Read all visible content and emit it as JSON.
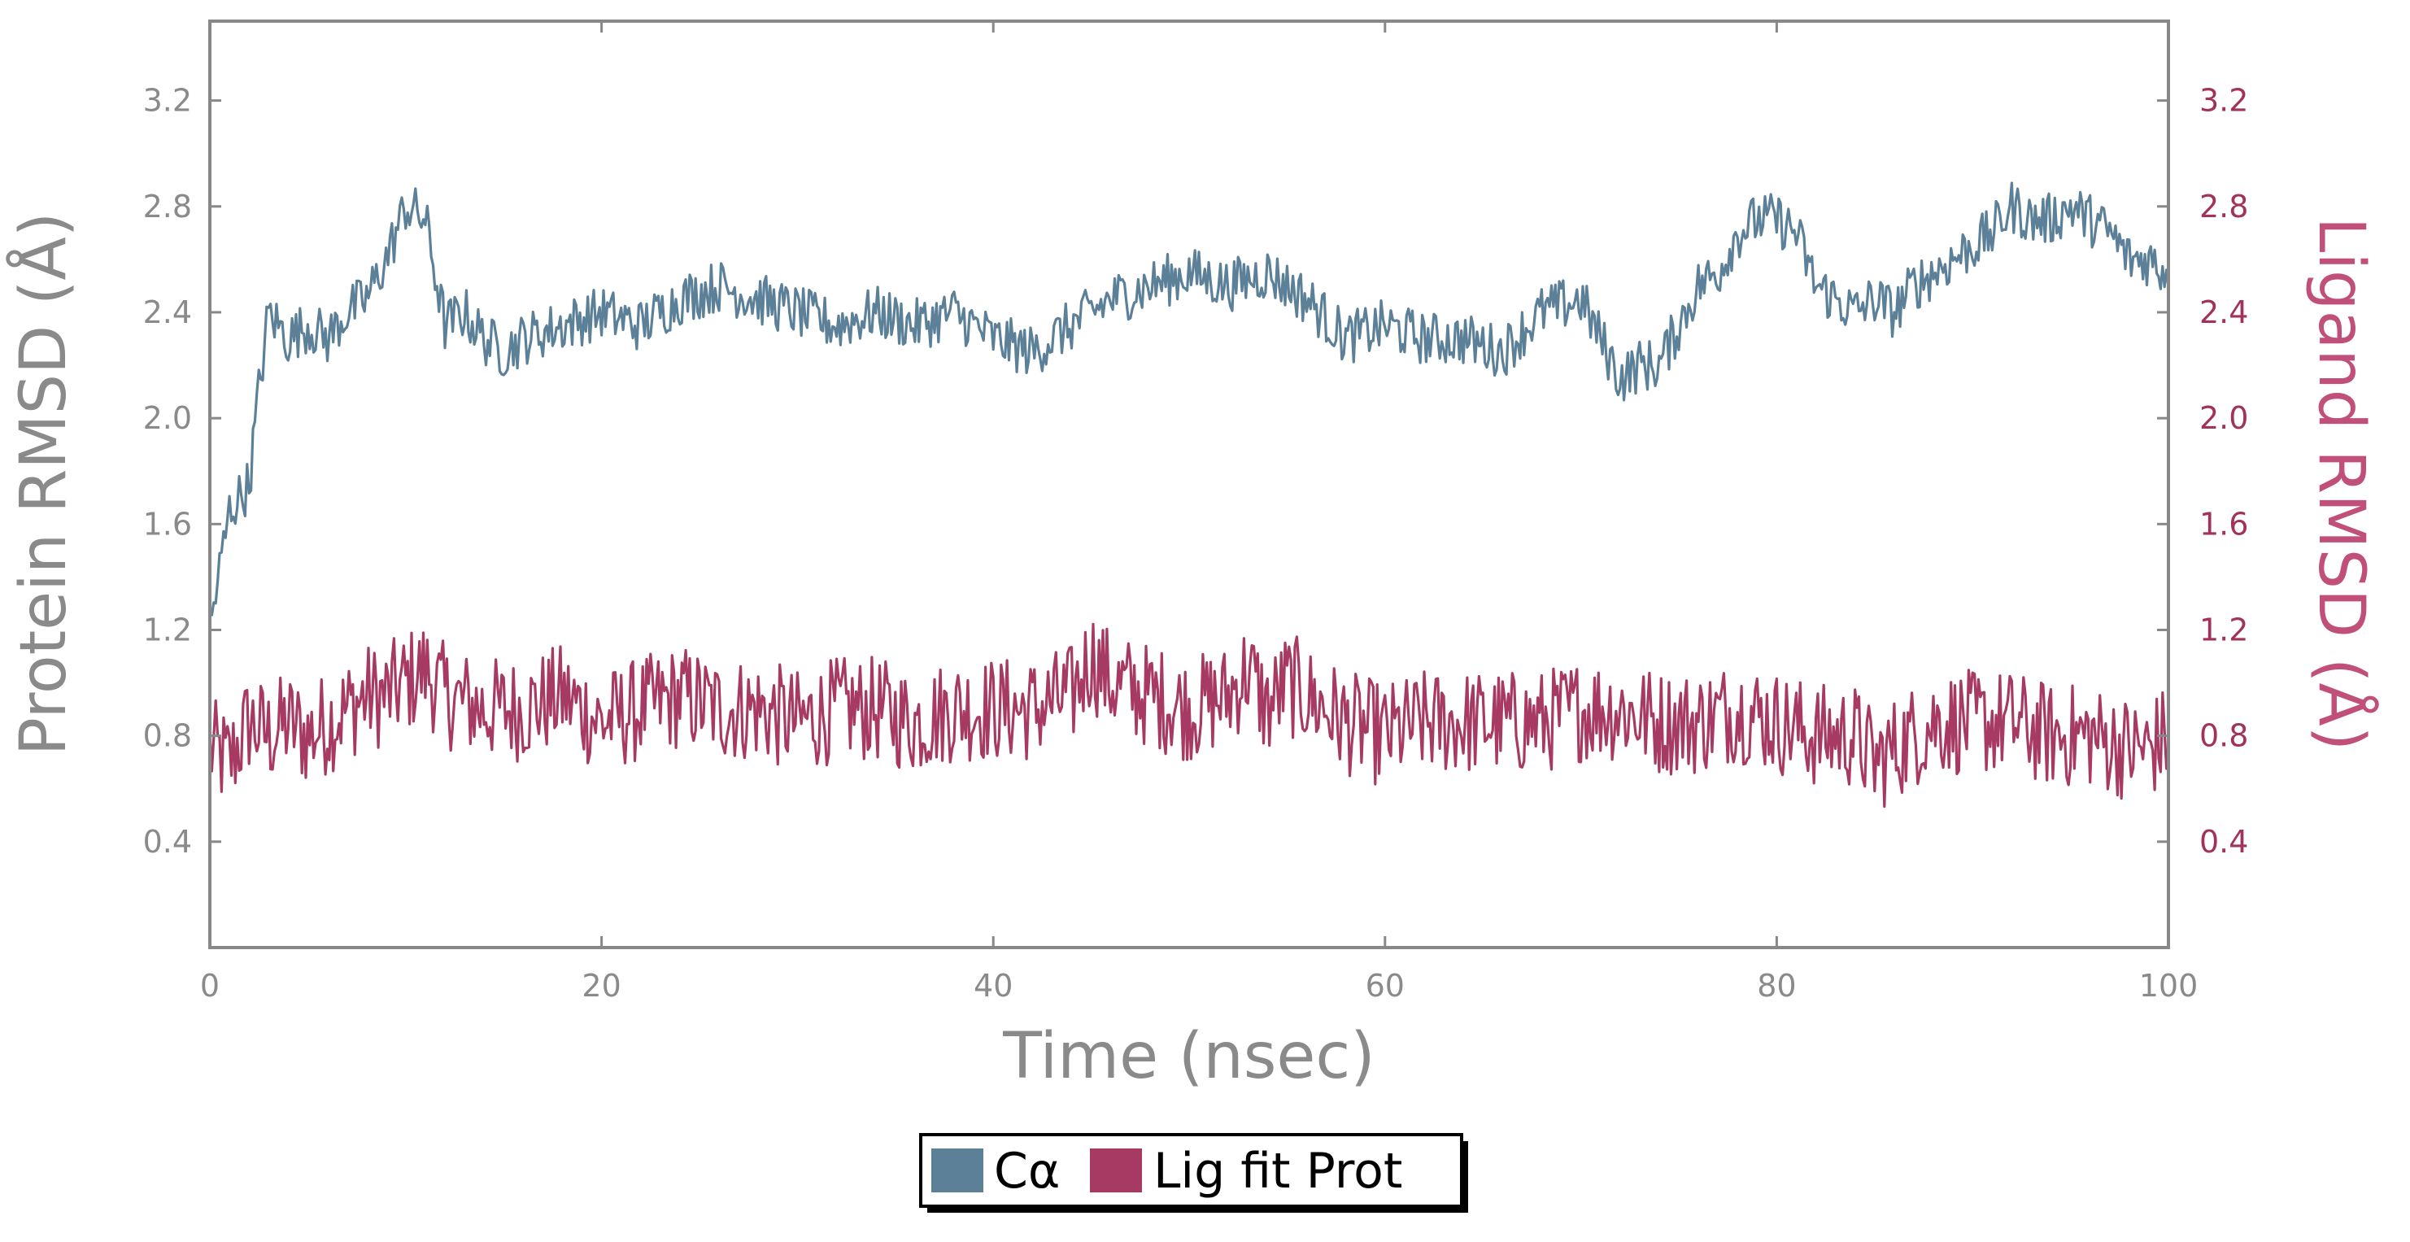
{
  "chart_data": {
    "type": "line",
    "xlabel": "Time (nsec)",
    "ylabel_left": "Protein RMSD (Å)",
    "ylabel_right": "Ligand RMSD (Å)",
    "xlim": [
      0,
      100
    ],
    "ylim_left": [
      0.0,
      3.5
    ],
    "ylim_right": [
      0.0,
      3.5
    ],
    "x_ticks": [
      "0",
      "20",
      "40",
      "60",
      "80",
      "100"
    ],
    "y_ticks_left": [
      "0.4",
      "0.8",
      "1.2",
      "1.6",
      "2.0",
      "2.4",
      "2.8",
      "3.2"
    ],
    "y_ticks_right": [
      "0.4",
      "0.8",
      "1.2",
      "1.6",
      "2.0",
      "2.4",
      "2.8",
      "3.2"
    ],
    "grid": false,
    "legend_position": "bottom-center",
    "colors": {
      "protein": "#5b8098",
      "ligand": "#a73a62",
      "axis_text_left": "#8a8a8a",
      "axis_text_right": "#a0325c",
      "frame": "#888888"
    },
    "series": [
      {
        "name": "Cα",
        "axis": "left",
        "x": [
          0,
          1,
          2,
          2.5,
          3,
          4,
          5,
          6,
          7,
          8,
          9,
          10,
          11,
          12,
          13,
          14,
          15,
          16,
          18,
          20,
          22,
          24,
          26,
          28,
          30,
          32,
          34,
          36,
          38,
          40,
          42,
          44,
          46,
          48,
          50,
          52,
          54,
          56,
          58,
          60,
          62,
          64,
          66,
          68,
          70,
          71,
          72,
          73,
          74,
          75,
          76,
          77,
          78,
          79,
          80,
          81,
          82,
          83,
          84,
          85,
          86,
          87,
          88,
          89,
          90,
          91,
          92,
          93,
          94,
          95,
          96,
          97,
          98,
          99,
          100
        ],
        "y": [
          1.2,
          1.65,
          1.75,
          2.1,
          2.4,
          2.3,
          2.35,
          2.3,
          2.4,
          2.45,
          2.6,
          2.8,
          2.75,
          2.35,
          2.4,
          2.3,
          2.25,
          2.3,
          2.35,
          2.4,
          2.35,
          2.45,
          2.5,
          2.45,
          2.4,
          2.35,
          2.4,
          2.35,
          2.4,
          2.3,
          2.25,
          2.35,
          2.45,
          2.5,
          2.55,
          2.5,
          2.55,
          2.45,
          2.3,
          2.35,
          2.3,
          2.3,
          2.25,
          2.4,
          2.45,
          2.3,
          2.15,
          2.2,
          2.2,
          2.35,
          2.5,
          2.55,
          2.7,
          2.75,
          2.75,
          2.7,
          2.5,
          2.45,
          2.4,
          2.45,
          2.4,
          2.5,
          2.55,
          2.6,
          2.65,
          2.7,
          2.8,
          2.75,
          2.75,
          2.8,
          2.75,
          2.7,
          2.6,
          2.6,
          2.55
        ]
      },
      {
        "name": "Lig fit Prot",
        "axis": "right",
        "x": [
          0,
          1,
          2,
          3,
          4,
          5,
          6,
          7,
          8,
          9,
          10,
          11,
          12,
          14,
          16,
          18,
          20,
          22,
          24,
          26,
          28,
          30,
          32,
          34,
          36,
          38,
          40,
          42,
          44,
          45,
          46,
          48,
          50,
          52,
          53,
          54,
          55,
          56,
          58,
          60,
          62,
          64,
          66,
          68,
          70,
          72,
          74,
          76,
          78,
          80,
          82,
          84,
          85,
          86,
          88,
          90,
          92,
          94,
          96,
          98,
          99,
          100
        ],
        "y": [
          0.75,
          0.7,
          0.85,
          0.8,
          0.85,
          0.8,
          0.85,
          0.9,
          0.95,
          0.95,
          1.0,
          1.05,
          0.95,
          0.9,
          0.9,
          0.95,
          0.85,
          0.9,
          0.95,
          0.9,
          0.9,
          0.85,
          0.9,
          0.9,
          0.85,
          0.9,
          0.9,
          0.9,
          0.95,
          1.1,
          1.0,
          0.95,
          0.9,
          0.95,
          1.05,
          0.9,
          1.0,
          0.95,
          0.85,
          0.8,
          0.85,
          0.85,
          0.85,
          0.85,
          0.9,
          0.9,
          0.85,
          0.85,
          0.9,
          0.85,
          0.8,
          0.8,
          0.7,
          0.75,
          0.85,
          0.85,
          0.85,
          0.8,
          0.8,
          0.75,
          0.75,
          0.8
        ]
      }
    ]
  }
}
